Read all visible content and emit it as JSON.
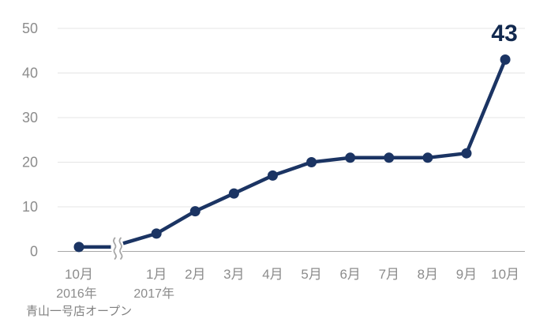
{
  "chart_data": {
    "type": "line",
    "title": "",
    "x": [
      "10月",
      "1月",
      "2月",
      "3月",
      "4月",
      "5月",
      "6月",
      "7月",
      "8月",
      "9月",
      "10月"
    ],
    "x_units": [
      0,
      2,
      3,
      4,
      5,
      6,
      7,
      8,
      9,
      10,
      11
    ],
    "values": [
      1,
      4,
      9,
      13,
      17,
      20,
      21,
      21,
      21,
      22,
      43
    ],
    "year_labels": [
      {
        "point_index": 0,
        "label": "2016年"
      },
      {
        "point_index": 1,
        "label": "2017年"
      }
    ],
    "yticks": [
      0,
      10,
      20,
      30,
      40,
      50
    ],
    "ylim": [
      0,
      50
    ],
    "grid": true,
    "legend": "none",
    "axis_break_after_index": 0,
    "last_value_label": "43",
    "annotation": "青山一号店オープン"
  },
  "colors": {
    "line": "#1b3463",
    "marker": "#1b3463",
    "value_label": "#12294f",
    "grid": "#e4e4e4",
    "axis": "#a6a6a6",
    "tick_label": "#8c8c8c",
    "annotation": "#808080",
    "background": "#ffffff"
  }
}
